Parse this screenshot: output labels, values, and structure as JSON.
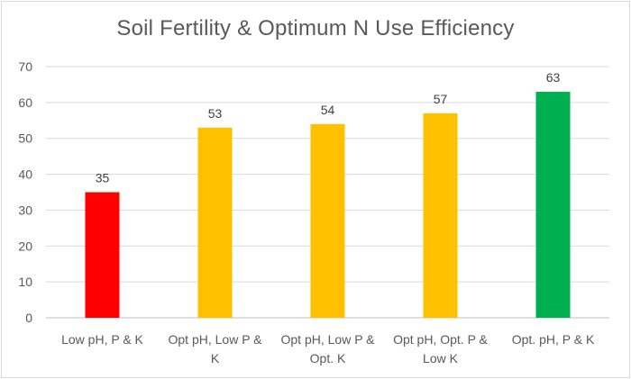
{
  "chart_data": {
    "type": "bar",
    "title": "Soil Fertility & Optimum N Use Efficiency",
    "xlabel": "",
    "ylabel": "",
    "ylim": [
      0,
      70
    ],
    "yticks": [
      0,
      10,
      20,
      30,
      40,
      50,
      60,
      70
    ],
    "grid": true,
    "legend": "none",
    "categories": [
      [
        "Low pH, P & K"
      ],
      [
        "Opt pH, Low P &",
        "K"
      ],
      [
        "Opt pH, Low P &",
        "Opt. K"
      ],
      [
        "Opt pH, Opt. P &",
        "Low K"
      ],
      [
        "Opt. pH, P & K"
      ]
    ],
    "values": [
      35,
      53,
      54,
      57,
      63
    ],
    "colors": [
      "#ff0000",
      "#ffc000",
      "#ffc000",
      "#ffc000",
      "#00b050"
    ],
    "data_labels": [
      "35",
      "53",
      "54",
      "57",
      "63"
    ]
  }
}
